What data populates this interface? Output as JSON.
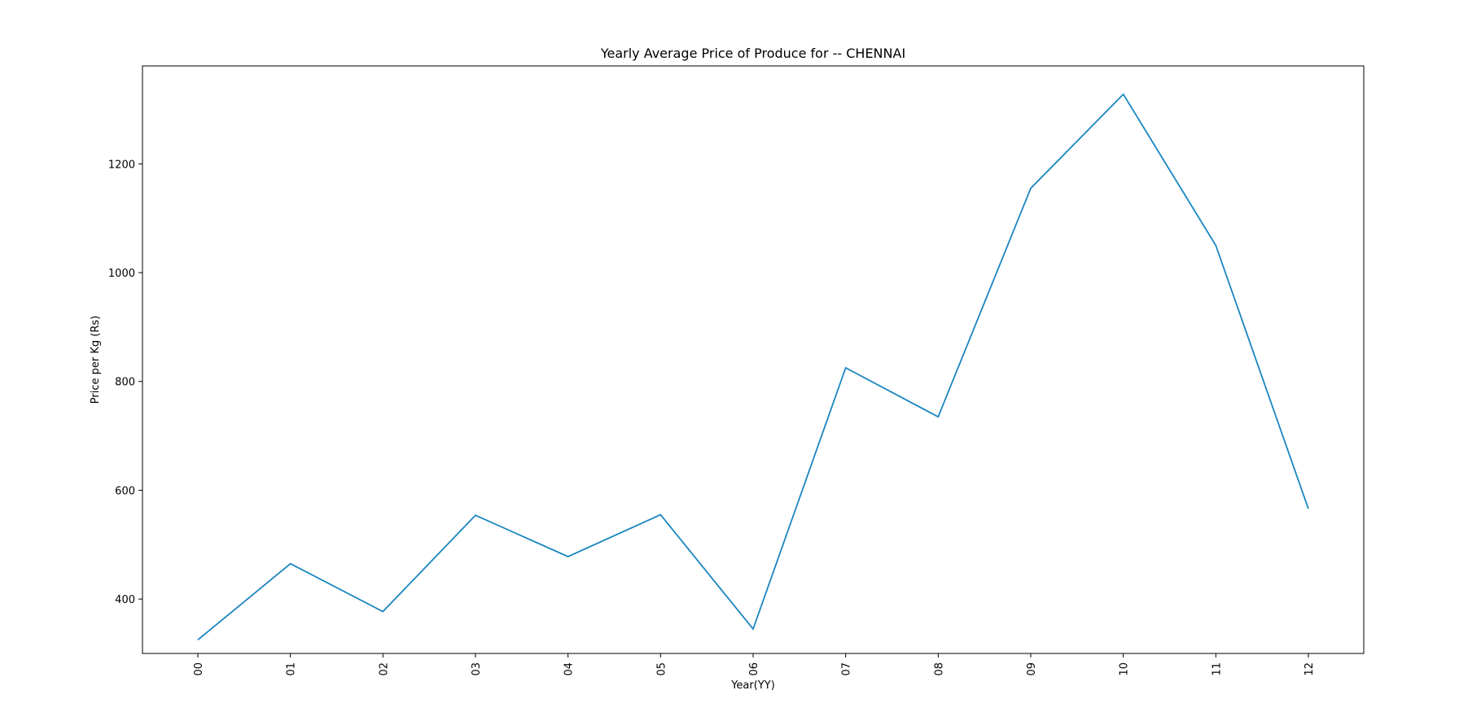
{
  "chart_data": {
    "type": "line",
    "title": "Yearly Average Price of Produce for  --  CHENNAI",
    "xlabel": "Year(YY)",
    "ylabel": "Price per Kg (Rs)",
    "categories": [
      "00",
      "01",
      "02",
      "03",
      "04",
      "05",
      "06",
      "07",
      "08",
      "09",
      "10",
      "11",
      "12"
    ],
    "series": [
      {
        "values": [
          325,
          465,
          377,
          554,
          478,
          555,
          345,
          825,
          735,
          1155,
          1328,
          1050,
          566
        ],
        "color": "#1a86c0"
      }
    ],
    "ylim": [
      300,
      1380
    ],
    "yticks": [
      400,
      600,
      800,
      1000,
      1200
    ],
    "grid": false,
    "legend": "none"
  }
}
